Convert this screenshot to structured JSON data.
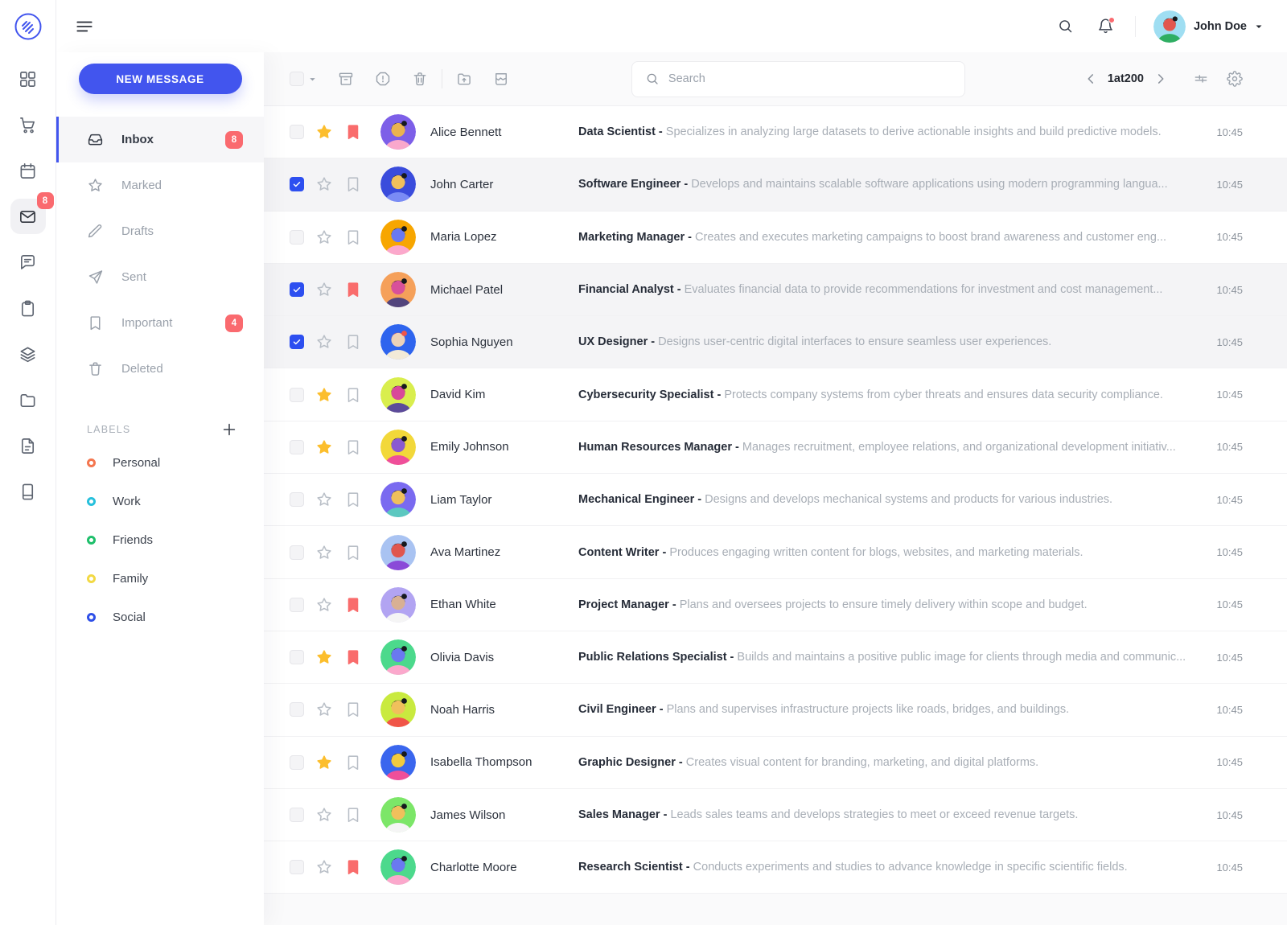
{
  "colors": {
    "accent": "#4255ee",
    "badge_red": "#fa6a6f",
    "star_yellow": "#fcbe2d",
    "bookmark_red": "#f96c6c",
    "label_personal": "#f4764f",
    "label_work": "#27c0dc",
    "label_friends": "#1fbf6b",
    "label_family": "#f2d944",
    "label_social": "#2f50e8"
  },
  "rail": {
    "mail_badge": "8",
    "items": [
      {
        "icon": "grid-icon",
        "active": false
      },
      {
        "icon": "cart-icon",
        "active": false
      },
      {
        "icon": "calendar-icon",
        "active": false
      },
      {
        "icon": "mail-icon",
        "active": true,
        "badge": "8"
      },
      {
        "icon": "chat-icon",
        "active": false
      },
      {
        "icon": "clipboard-icon",
        "active": false
      },
      {
        "icon": "layers-icon",
        "active": false
      },
      {
        "icon": "folder-icon",
        "active": false
      },
      {
        "icon": "file-icon",
        "active": false
      },
      {
        "icon": "book-icon",
        "active": false
      }
    ]
  },
  "header": {
    "user_name": "John Doe"
  },
  "sidebar": {
    "compose_label": "NEW MESSAGE",
    "items": [
      {
        "label": "Inbox",
        "icon": "inbox",
        "badge": "8",
        "active": true
      },
      {
        "label": "Marked",
        "icon": "star",
        "badge": "",
        "active": false
      },
      {
        "label": "Drafts",
        "icon": "pencil",
        "badge": "",
        "active": false
      },
      {
        "label": "Sent",
        "icon": "send",
        "badge": "",
        "active": false
      },
      {
        "label": "Important",
        "icon": "bookmark",
        "badge": "4",
        "active": false
      },
      {
        "label": "Deleted",
        "icon": "trash",
        "badge": "",
        "active": false
      }
    ],
    "labels_header": "LABELS",
    "labels": [
      {
        "name": "Personal",
        "color": "#f4764f"
      },
      {
        "name": "Work",
        "color": "#27c0dc"
      },
      {
        "name": "Friends",
        "color": "#1fbf6b"
      },
      {
        "name": "Family",
        "color": "#f2d944"
      },
      {
        "name": "Social",
        "color": "#2f50e8"
      }
    ]
  },
  "toolbar": {
    "search_placeholder": "Search",
    "pagination": "1at200"
  },
  "rows": [
    {
      "name": "Alice Bennett",
      "subject": "Data Scientist",
      "snippet": "Specializes in analyzing large datasets to derive actionable insights and build predictive models.",
      "time": "10:45",
      "checked": false,
      "starred": true,
      "bookmarked": true,
      "avatar": {
        "bg": "#7d5fe8",
        "skin": "#eab34f",
        "hair": "#16191e",
        "shirt": "#f9a8cc"
      }
    },
    {
      "name": "John Carter",
      "subject": "Software Engineer",
      "snippet": "Develops and maintains scalable software applications using modern programming langua...",
      "time": "10:45",
      "checked": true,
      "starred": false,
      "bookmarked": false,
      "avatar": {
        "bg": "#3a4cdc",
        "skin": "#f0c05c",
        "hair": "#16191e",
        "shirt": "#7a8cf5"
      }
    },
    {
      "name": "Maria Lopez",
      "subject": "Marketing Manager",
      "snippet": "Creates and executes marketing campaigns to boost brand awareness and customer eng...",
      "time": "10:45",
      "checked": false,
      "starred": false,
      "bookmarked": false,
      "avatar": {
        "bg": "#f7a600",
        "skin": "#6a79f0",
        "hair": "#16191e",
        "shirt": "#fba8cc"
      }
    },
    {
      "name": "Michael Patel",
      "subject": "Financial Analyst",
      "snippet": "Evaluates financial data to provide recommendations for investment and cost management...",
      "time": "10:45",
      "checked": true,
      "starred": false,
      "bookmarked": true,
      "avatar": {
        "bg": "#f5a05a",
        "skin": "#d8509a",
        "hair": "#16191e",
        "shirt": "#52447c"
      }
    },
    {
      "name": "Sophia Nguyen",
      "subject": "UX Designer",
      "snippet": "Designs user-centric digital interfaces to ensure seamless user experiences.",
      "time": "10:45",
      "checked": true,
      "starred": false,
      "bookmarked": false,
      "avatar": {
        "bg": "#2e64ee",
        "skin": "#ecd2b8",
        "hair": "#f05548",
        "shirt": "#f2ead8"
      }
    },
    {
      "name": "David Kim",
      "subject": "Cybersecurity Specialist",
      "snippet": "Protects company systems from cyber threats and ensures data security compliance.",
      "time": "10:45",
      "checked": false,
      "starred": true,
      "bookmarked": false,
      "avatar": {
        "bg": "#d9ee4e",
        "skin": "#d8489a",
        "hair": "#16191e",
        "shirt": "#5c4b9a"
      }
    },
    {
      "name": "Emily Johnson",
      "subject": "Human Resources Manager",
      "snippet": "Manages recruitment, employee relations, and organizational development initiativ...",
      "time": "10:45",
      "checked": false,
      "starred": true,
      "bookmarked": false,
      "avatar": {
        "bg": "#f2d83a",
        "skin": "#8a5ad0",
        "hair": "#16191e",
        "shirt": "#ef4f9a"
      }
    },
    {
      "name": "Liam Taylor",
      "subject": "Mechanical Engineer",
      "snippet": "Designs and develops mechanical systems and products for various industries.",
      "time": "10:45",
      "checked": false,
      "starred": false,
      "bookmarked": false,
      "avatar": {
        "bg": "#7a6af0",
        "skin": "#f0c05c",
        "hair": "#16191e",
        "shirt": "#5cc8c0"
      }
    },
    {
      "name": "Ava Martinez",
      "subject": "Content Writer",
      "snippet": "Produces engaging written content for blogs, websites, and marketing materials.",
      "time": "10:45",
      "checked": false,
      "starred": false,
      "bookmarked": false,
      "avatar": {
        "bg": "#a9c3f2",
        "skin": "#e0564e",
        "hair": "#16191e",
        "shirt": "#8a4ad8"
      }
    },
    {
      "name": "Ethan White",
      "subject": "Project Manager",
      "snippet": "Plans and oversees projects to ensure timely delivery within scope and budget.",
      "time": "10:45",
      "checked": false,
      "starred": false,
      "bookmarked": true,
      "avatar": {
        "bg": "#b2a4f2",
        "skin": "#d8b093",
        "hair": "#16191e",
        "shirt": "#f5f5f5"
      }
    },
    {
      "name": "Olivia Davis",
      "subject": "Public Relations Specialist",
      "snippet": "Builds and maintains a positive public image for clients through media and communic...",
      "time": "10:45",
      "checked": false,
      "starred": true,
      "bookmarked": true,
      "avatar": {
        "bg": "#4cd98c",
        "skin": "#6a79f0",
        "hair": "#16191e",
        "shirt": "#fba8cc"
      }
    },
    {
      "name": "Noah Harris",
      "subject": "Civil Engineer",
      "snippet": "Plans and supervises infrastructure projects like roads, bridges, and buildings.",
      "time": "10:45",
      "checked": false,
      "starred": false,
      "bookmarked": false,
      "avatar": {
        "bg": "#c9ea3f",
        "skin": "#f0c05c",
        "hair": "#16191e",
        "shirt": "#f05548"
      }
    },
    {
      "name": "Isabella Thompson",
      "subject": "Graphic Designer",
      "snippet": "Creates visual content for branding, marketing, and digital platforms.",
      "time": "10:45",
      "checked": false,
      "starred": true,
      "bookmarked": false,
      "avatar": {
        "bg": "#3a66ee",
        "skin": "#f2cb3e",
        "hair": "#16191e",
        "shirt": "#ef4f9a"
      }
    },
    {
      "name": "James Wilson",
      "subject": "Sales Manager",
      "snippet": "Leads sales teams and develops strategies to meet or exceed revenue targets.",
      "time": "10:45",
      "checked": false,
      "starred": false,
      "bookmarked": false,
      "avatar": {
        "bg": "#7ce668",
        "skin": "#f0c05c",
        "hair": "#16191e",
        "shirt": "#f5f5f5"
      }
    },
    {
      "name": "Charlotte Moore",
      "subject": "Research Scientist",
      "snippet": "Conducts experiments and studies to advance knowledge in specific scientific fields.",
      "time": "10:45",
      "checked": false,
      "starred": false,
      "bookmarked": true,
      "avatar": {
        "bg": "#4cd98c",
        "skin": "#6a79f0",
        "hair": "#16191e",
        "shirt": "#fba8cc"
      }
    }
  ],
  "header_avatar": {
    "bg": "#9fdef2",
    "skin": "#e2574e",
    "hair": "#16191e",
    "shirt": "#2fae62"
  }
}
